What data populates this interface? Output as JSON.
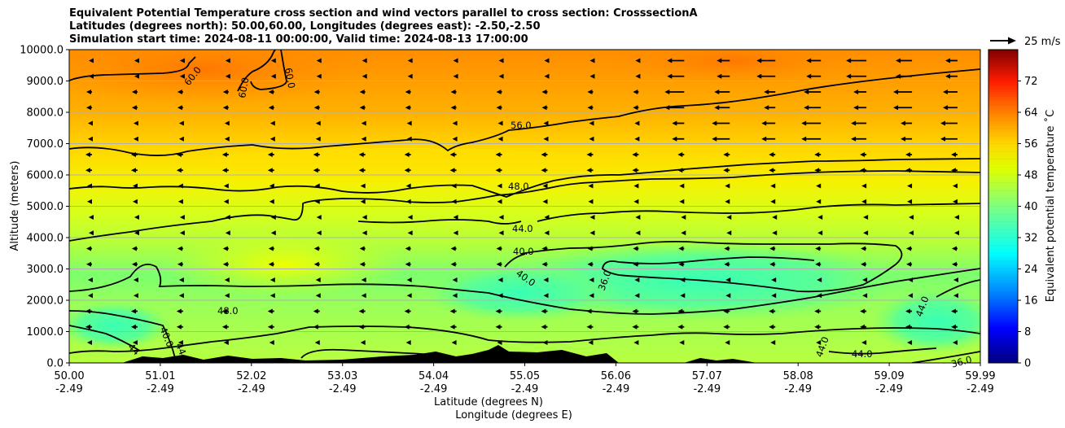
{
  "title_lines": [
    "Equivalent Potential Temperature cross section and wind vectors parallel to cross section: CrosssectionA",
    "Latitudes (degrees north): 50.00,60.00, Longitudes (degrees east): -2.50,-2.50",
    "Simulation start time: 2024-08-11 00:00:00, Valid time: 2024-08-13 17:00:00"
  ],
  "chart_data": {
    "type": "heatmap",
    "ylabel": "Altitude (meters)",
    "xlabel_lines": [
      "Latitude (degrees N)",
      "Longitude (degrees E)"
    ],
    "ylim": [
      0,
      10000
    ],
    "y_ticks": [
      "0.0",
      "1000.0",
      "2000.0",
      "3000.0",
      "4000.0",
      "5000.0",
      "6000.0",
      "7000.0",
      "8000.0",
      "9000.0",
      "10000.0"
    ],
    "x_ticks": [
      {
        "lat": "50.00",
        "lon": "-2.49"
      },
      {
        "lat": "51.01",
        "lon": "-2.49"
      },
      {
        "lat": "52.02",
        "lon": "-2.49"
      },
      {
        "lat": "53.03",
        "lon": "-2.49"
      },
      {
        "lat": "54.04",
        "lon": "-2.49"
      },
      {
        "lat": "55.05",
        "lon": "-2.49"
      },
      {
        "lat": "56.06",
        "lon": "-2.49"
      },
      {
        "lat": "57.07",
        "lon": "-2.49"
      },
      {
        "lat": "58.08",
        "lon": "-2.49"
      },
      {
        "lat": "59.09",
        "lon": "-2.49"
      },
      {
        "lat": "59.99",
        "lon": "-2.49"
      }
    ],
    "grid": "horizontal",
    "colorbar": {
      "label": "Equivalent potential temperature ˚C",
      "range": [
        0,
        80
      ],
      "ticks": [
        "0",
        "8",
        "16",
        "24",
        "32",
        "40",
        "48",
        "56",
        "64",
        "72"
      ]
    },
    "contour_labels": [
      "60.0",
      "60.0",
      "60.0",
      "56.0",
      "48.0",
      "44.0",
      "40.0",
      "40.0",
      "36.0",
      "48.0",
      "40.0",
      "44",
      "44",
      "44.0",
      "44.0",
      "44.0",
      "36.0"
    ],
    "quiver_key": "25 m/s",
    "wind_direction": "westward (negative along section)"
  }
}
